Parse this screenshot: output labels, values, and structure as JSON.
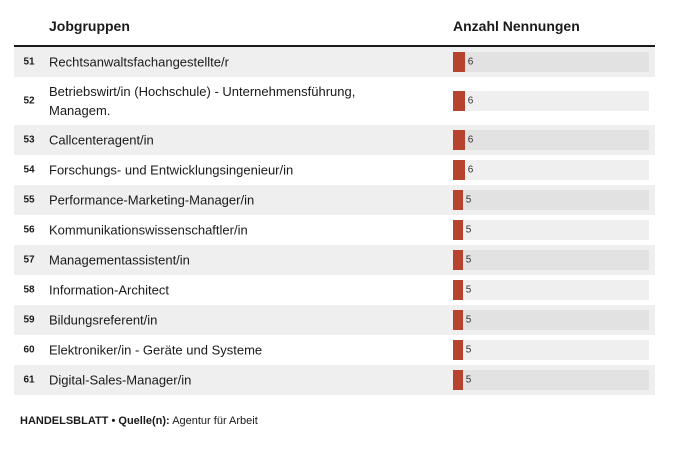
{
  "header": {
    "col_job": "Jobgruppen",
    "col_count": "Anzahl Nennungen"
  },
  "chart_data": {
    "type": "bar",
    "orientation": "horizontal",
    "xlim": [
      0,
      100
    ],
    "categories": [
      {
        "rank": "51",
        "label": "Rechtsanwaltsfachangestellte/r",
        "value": 6
      },
      {
        "rank": "52",
        "label": "Betriebswirt/in (Hochschule) - Unternehmensführung, Managem.",
        "value": 6
      },
      {
        "rank": "53",
        "label": "Callcenteragent/in",
        "value": 6
      },
      {
        "rank": "54",
        "label": "Forschungs- und Entwicklungsingenieur/in",
        "value": 6
      },
      {
        "rank": "55",
        "label": "Performance-Marketing-Manager/in",
        "value": 5
      },
      {
        "rank": "56",
        "label": "Kommunikationswissenschaftler/in",
        "value": 5
      },
      {
        "rank": "57",
        "label": "Managementassistent/in",
        "value": 5
      },
      {
        "rank": "58",
        "label": "Information-Architect",
        "value": 5
      },
      {
        "rank": "59",
        "label": "Bildungsreferent/in",
        "value": 5
      },
      {
        "rank": "60",
        "label": "Elektroniker/in - Geräte und Systeme",
        "value": 5
      },
      {
        "rank": "61",
        "label": "Digital-Sales-Manager/in",
        "value": 5
      }
    ],
    "colors": {
      "bar": "#b5432e"
    }
  },
  "footer": {
    "brand": "HANDELSBLATT",
    "separator": "•",
    "source_label": "Quelle(n):",
    "source": "Agentur für Arbeit"
  }
}
